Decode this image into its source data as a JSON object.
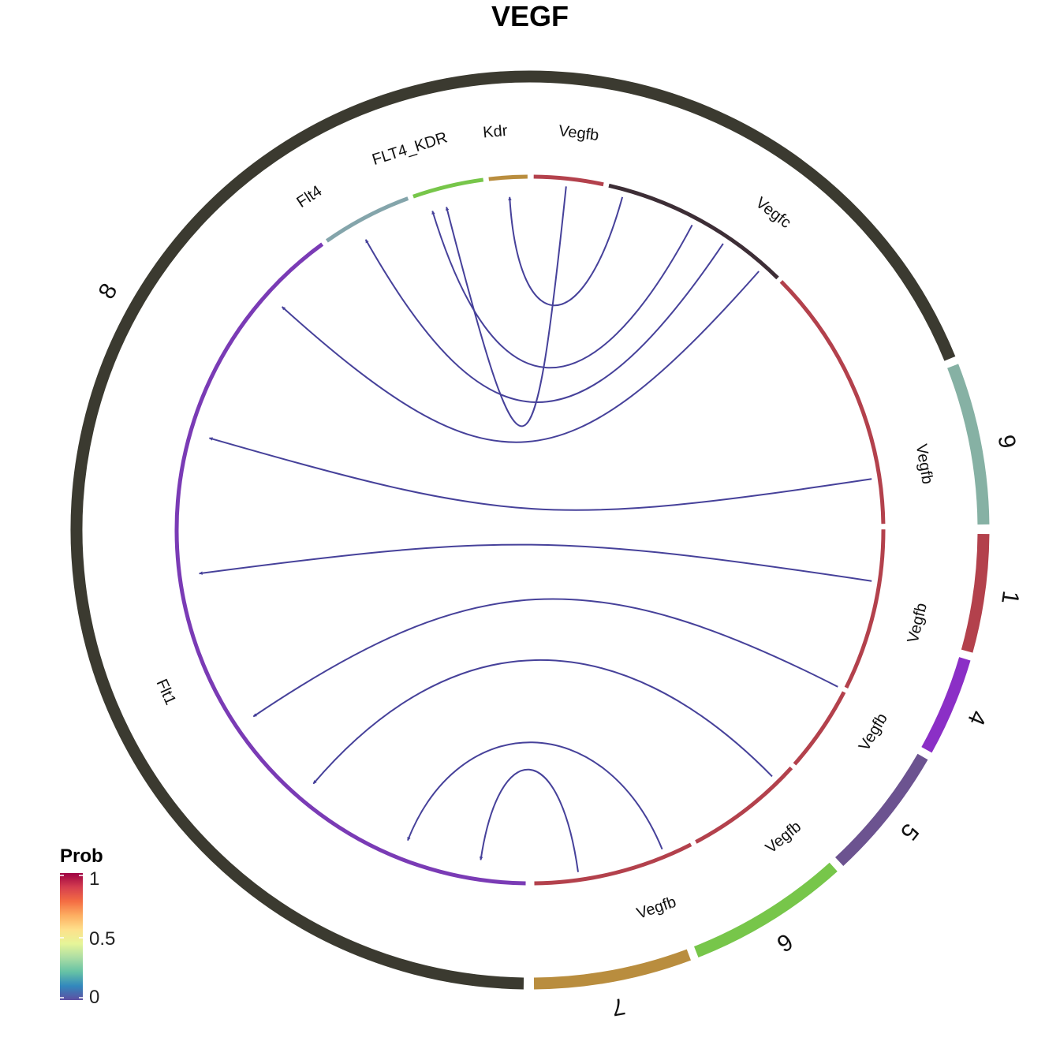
{
  "chart_data": {
    "type": "chord",
    "title": "VEGF",
    "groups": [
      {
        "name": "8",
        "color": "#3b3a30",
        "start": 180,
        "end": 348.5
      },
      {
        "name": "9",
        "color": "#86b1a4",
        "start": 348.5,
        "end": 359.5
      },
      {
        "name": "1",
        "color": "#b3414c",
        "start": 0.5,
        "end": 14
      },
      {
        "name": "4",
        "color": "#8b2fc6",
        "start": 14.5,
        "end": 23
      },
      {
        "name": "5",
        "color": "#6c5390",
        "start": 23.7,
        "end": 45
      },
      {
        "name": "6",
        "color": "#77c64a",
        "start": 45.7,
        "end": 62.7
      },
      {
        "name": "7",
        "color": "#b98d3e",
        "start": 63.5,
        "end": 79.5
      }
    ],
    "sectors": [
      {
        "label": "Vegfb",
        "color": "#b3414c",
        "start": 344.5,
        "end": 359.5
      },
      {
        "label": "Vegfc",
        "color": "#3d2e36",
        "start": 300.5,
        "end": 344
      },
      {
        "label": "Vegfb",
        "color": "#b3414c",
        "start": 276,
        "end": 300
      },
      {
        "label": "Vegfb",
        "color": "#b3414c",
        "start": 240,
        "end": 275.5
      },
      {
        "label": "Vegfb",
        "color": "#b3414c",
        "start": 219.5,
        "end": 239.5
      },
      {
        "label": "Vegfb",
        "color": "#b3414c",
        "start": 201,
        "end": 219
      },
      {
        "label": "Vegfb",
        "color": "#b3414c",
        "start": 180.5,
        "end": 200.5
      },
      {
        "label": "Flt1",
        "color": "#7a3bb5",
        "start": 35,
        "end": 179.5
      },
      {
        "label": "Flt4",
        "color": "#84a5ab",
        "start": 35.5,
        "end": 55
      },
      {
        "label": "FLT4_KDR",
        "color": "#77c64a",
        "start": 15.5,
        "end": 35
      },
      {
        "label": "Kdr",
        "color": "#b98d3e",
        "start": 0.5,
        "end": 15
      }
    ],
    "links": [
      {
        "from": "Vegfb (1)",
        "to": "FLT4_KDR",
        "prob": 0.05
      },
      {
        "from": "Vegfc",
        "to": "Kdr",
        "prob": 0.05
      },
      {
        "from": "Vegfc",
        "to": "FLT4_KDR",
        "prob": 0.05
      },
      {
        "from": "Vegfc",
        "to": "Flt4",
        "prob": 0.05
      },
      {
        "from": "Vegfc",
        "to": "Flt1",
        "prob": 0.05
      },
      {
        "from": "Vegfb (9)",
        "to": "Flt1",
        "prob": 0.05
      },
      {
        "from": "Vegfb (1)",
        "to": "Flt1",
        "prob": 0.05
      },
      {
        "from": "Vegfb (4)",
        "to": "Flt1",
        "prob": 0.05
      },
      {
        "from": "Vegfb (5)",
        "to": "Flt1",
        "prob": 0.05
      },
      {
        "from": "Vegfb (6)",
        "to": "Flt1",
        "prob": 0.05
      },
      {
        "from": "Vegfb (7)",
        "to": "Flt1",
        "prob": 0.05
      }
    ],
    "legend": {
      "title": "Prob",
      "ticks": [
        "1",
        "0.5",
        "0"
      ],
      "colors": [
        "#9e0142",
        "#d53e4f",
        "#f46d43",
        "#fdae61",
        "#fee08b",
        "#e6f598",
        "#abdda4",
        "#66c2a5",
        "#3288bd",
        "#5e4fa2"
      ]
    }
  }
}
